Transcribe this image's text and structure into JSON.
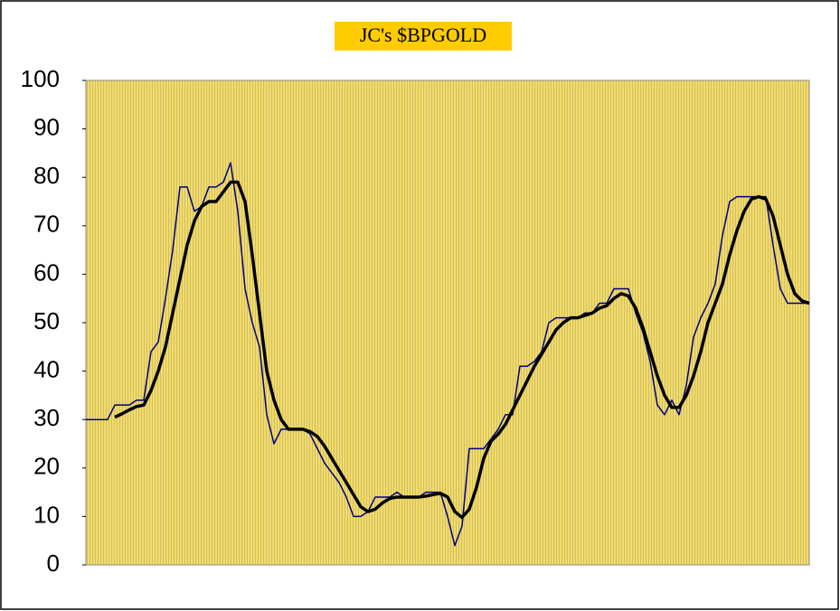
{
  "chart_data": {
    "type": "line",
    "title": "JC's $BPGOLD",
    "categories": [
      null,
      null,
      null,
      null,
      null,
      null,
      null,
      null,
      null,
      null,
      null,
      null,
      null,
      null,
      null,
      null,
      null,
      null,
      null,
      null,
      null,
      null,
      null,
      null,
      null,
      null,
      null,
      null,
      null,
      null,
      null,
      null,
      null,
      null,
      null,
      null,
      null,
      null,
      null,
      null,
      null,
      null,
      null,
      null,
      null,
      null,
      null,
      null,
      null,
      null,
      null,
      null,
      null,
      null,
      null,
      null,
      null,
      null,
      null,
      null,
      null,
      null,
      null,
      null,
      null,
      null,
      null,
      null,
      null,
      null,
      null,
      null,
      null,
      null,
      null,
      null,
      null,
      null,
      null,
      null,
      null,
      null,
      null,
      null,
      null,
      null,
      null,
      null,
      null,
      null,
      null,
      null,
      null,
      null,
      null,
      null,
      null,
      null,
      null,
      null,
      null
    ],
    "series": [
      {
        "color": "#000080",
        "values": [
          30,
          30,
          30,
          30,
          33,
          33,
          33,
          34,
          34,
          44,
          46,
          55,
          65,
          78,
          78,
          73,
          74,
          78,
          78,
          79,
          83,
          73,
          57,
          50,
          45,
          31,
          25,
          28,
          28,
          28,
          28,
          27,
          24,
          21,
          19,
          17,
          14,
          10,
          10,
          11,
          14,
          14,
          14,
          15,
          14,
          14,
          14,
          15,
          15,
          15,
          10,
          4,
          8,
          24,
          24,
          24,
          26,
          28,
          31,
          31,
          41,
          41,
          42,
          44,
          50,
          51,
          51,
          51,
          51,
          52,
          52,
          54,
          54,
          57,
          57,
          57,
          52,
          48,
          42,
          33,
          31,
          34,
          31,
          37,
          47,
          51,
          54,
          58,
          68,
          75,
          76,
          76,
          76,
          76,
          76,
          66,
          57,
          54,
          54,
          54,
          54
        ]
      },
      {
        "color": "#000000",
        "values": [
          null,
          null,
          null,
          null,
          30.5,
          31.2,
          32,
          32.7,
          33,
          36,
          40,
          45,
          52,
          59,
          66,
          71,
          74,
          75,
          75,
          77,
          79,
          79,
          75,
          64,
          52,
          40,
          34,
          30,
          28,
          28,
          28,
          27.5,
          26.5,
          24.5,
          22,
          19.5,
          17,
          14.5,
          12,
          11,
          11.5,
          12.8,
          13.7,
          14,
          14,
          14,
          14,
          14.2,
          14.5,
          14.8,
          14,
          11,
          9.8,
          11.5,
          16,
          22,
          25.5,
          27,
          29,
          32,
          35,
          38,
          41,
          43.5,
          46,
          48.5,
          50,
          51,
          51,
          51.5,
          52,
          53,
          53.5,
          55,
          56,
          55.5,
          53,
          49,
          44,
          39,
          35,
          32.5,
          32.5,
          35,
          39,
          44,
          50,
          54,
          58,
          64,
          69,
          73,
          75.5,
          76,
          75.5,
          72,
          66,
          60,
          56,
          54.5,
          54
        ]
      }
    ],
    "ylim": [
      0,
      100
    ],
    "yticks": [
      0,
      10,
      20,
      30,
      40,
      50,
      60,
      70,
      80,
      90,
      100
    ],
    "plot_color": "#f2dc66",
    "title_color": "#ffcc00"
  }
}
